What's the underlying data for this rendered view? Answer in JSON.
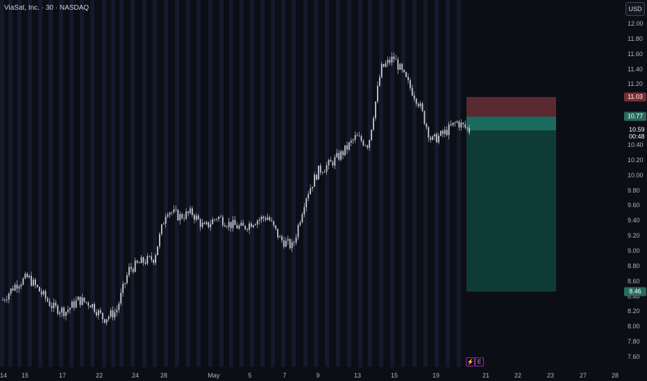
{
  "header": {
    "title": "ViaSat, Inc. · 30 · NASDAQ",
    "currency": "USD"
  },
  "y_axis": {
    "ticks": [
      "12.00",
      "11.80",
      "11.60",
      "11.40",
      "11.20",
      "10.40",
      "10.20",
      "10.00",
      "9.80",
      "9.60",
      "9.40",
      "9.20",
      "9.00",
      "8.80",
      "8.60",
      "8.40",
      "8.20",
      "8.00",
      "7.80",
      "7.60"
    ]
  },
  "x_axis": {
    "ticks": [
      "14",
      "15",
      "17",
      "22",
      "24",
      "28",
      "May",
      "5",
      "7",
      "9",
      "13",
      "15",
      "19",
      "21",
      "22",
      "23",
      "27",
      "28"
    ]
  },
  "price_labels": {
    "stop": "11.03",
    "stop_color": "#7a2d35",
    "entry": "10.77",
    "entry_color": "#2a6a5e",
    "target": "8.46",
    "target_color": "#2a6a5e",
    "last_price": "10.59",
    "countdown": "00:48"
  },
  "events": {
    "dividend_icon": "lightning-icon",
    "earnings_label": "E"
  },
  "chart_data": {
    "type": "candlestick",
    "title": "ViaSat, Inc. · 30 · NASDAQ",
    "currency": "USD",
    "ylim": [
      7.5,
      12.2
    ],
    "x_labels": [
      "14",
      "15",
      "17",
      "22",
      "24",
      "28",
      "May",
      "5",
      "7",
      "9",
      "13",
      "15",
      "19",
      "21",
      "22",
      "23",
      "27",
      "28"
    ],
    "approx_close_path": [
      8.35,
      8.55,
      8.65,
      8.45,
      8.25,
      8.2,
      8.35,
      8.3,
      8.1,
      8.2,
      8.75,
      8.85,
      8.9,
      9.55,
      9.45,
      9.5,
      9.3,
      9.45,
      9.35,
      9.3,
      9.4,
      9.45,
      9.15,
      9.05,
      9.7,
      10.05,
      10.15,
      10.3,
      10.5,
      10.4,
      11.4,
      11.55,
      11.25,
      10.95,
      10.45,
      10.55,
      10.7,
      10.59
    ],
    "position": {
      "type": "long",
      "entry": 10.77,
      "stop": 11.03,
      "target": 8.46
    },
    "last_price": 10.59,
    "colors": {
      "candles": "#c8ccd4",
      "stop_zone": "#5a2a33",
      "target_zone": "#0f3b36"
    }
  }
}
